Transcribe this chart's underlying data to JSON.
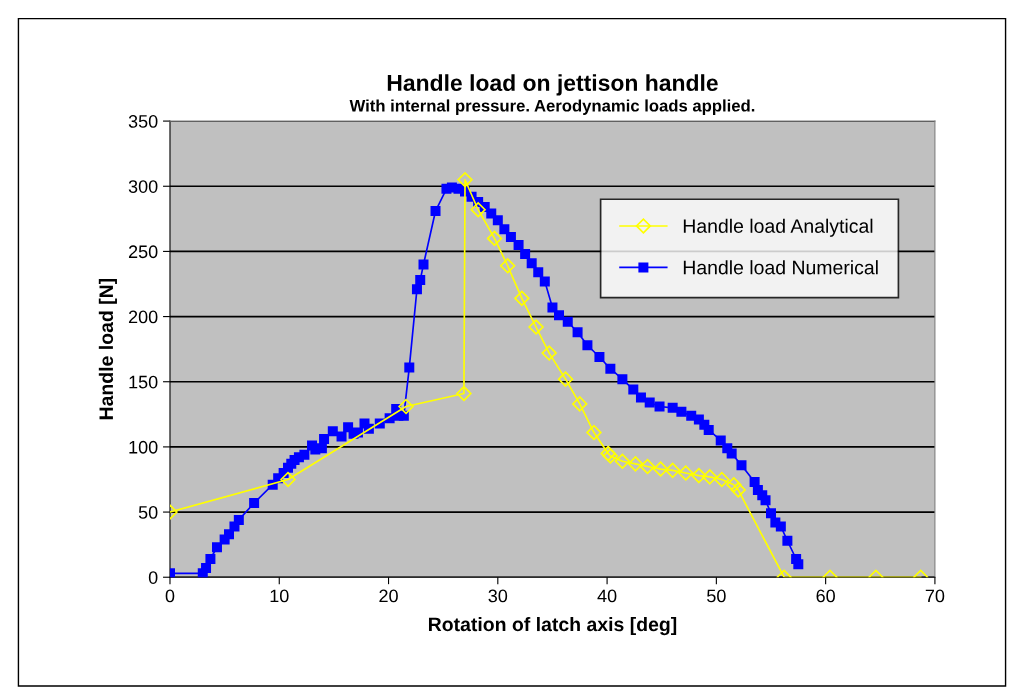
{
  "chart_data": {
    "type": "line",
    "title": "Handle load on jettison handle",
    "subtitle": "With internal pressure. Aerodynamic loads applied.",
    "xlabel": "Rotation of latch axis [deg]",
    "ylabel": "Handle load [N]",
    "xlim": [
      0,
      70
    ],
    "xticks": [
      0,
      10,
      20,
      30,
      40,
      50,
      60,
      70
    ],
    "ylim": [
      0,
      350
    ],
    "yticks": [
      0,
      50,
      100,
      150,
      200,
      250,
      300,
      350
    ],
    "grid": "y",
    "legend": "top right",
    "series": [
      {
        "name": "Handle load Analytical",
        "color": "#ffff00",
        "marker": "diamond",
        "x": [
          0,
          10.8,
          21.6,
          26.9,
          27.0,
          28.2,
          29.7,
          30.9,
          32.2,
          33.5,
          34.7,
          36.2,
          37.5,
          38.8,
          40.1,
          40.3,
          41.4,
          42.6,
          43.7,
          44.9,
          46.0,
          47.2,
          48.4,
          49.4,
          50.5,
          51.6,
          52.0,
          56.2,
          60.4,
          64.6,
          68.7
        ],
        "values": [
          50,
          75,
          131,
          141,
          305,
          282,
          260,
          239,
          214,
          192,
          172,
          152,
          133,
          111,
          95,
          93,
          89,
          87,
          85,
          83,
          82,
          80,
          78,
          77,
          75,
          71,
          67,
          0,
          0,
          0,
          0
        ]
      },
      {
        "name": "Handle load Numerical",
        "color": "#0000ff",
        "marker": "square",
        "x": [
          0,
          3.0,
          3.3,
          3.7,
          4.3,
          5.0,
          5.4,
          5.9,
          6.3,
          7.7,
          9.4,
          9.9,
          10.4,
          10.8,
          11.1,
          11.4,
          11.8,
          12.3,
          13.0,
          13.3,
          13.9,
          14.1,
          14.9,
          15.7,
          16.3,
          16.8,
          17.2,
          17.8,
          18.2,
          19.2,
          20.1,
          20.7,
          20.9,
          21.4,
          21.9,
          22.6,
          22.9,
          23.2,
          24.3,
          25.3,
          25.8,
          26.4,
          27.0,
          27.6,
          28.2,
          28.8,
          29.4,
          30.0,
          30.6,
          31.2,
          31.9,
          32.5,
          33.1,
          33.7,
          34.3,
          35.0,
          35.6,
          36.4,
          37.3,
          38.2,
          39.3,
          40.3,
          41.4,
          42.4,
          43.1,
          43.9,
          44.8,
          46.0,
          46.8,
          47.7,
          48.4,
          48.9,
          49.3,
          50.4,
          51.0,
          51.4,
          52.3,
          53.5,
          53.8,
          54.2,
          54.5,
          55.0,
          55.4,
          55.9,
          56.5,
          57.3,
          57.5
        ],
        "values": [
          3,
          3,
          7,
          14,
          23,
          29,
          33,
          39,
          44,
          57,
          71,
          76,
          80,
          84,
          87,
          90,
          92,
          94,
          101,
          98,
          99,
          106,
          112,
          108,
          115,
          110,
          111,
          118,
          114,
          118,
          122,
          129,
          124,
          124,
          161,
          221,
          228,
          240,
          281,
          298,
          299,
          298,
          296,
          292,
          288,
          284,
          279,
          274,
          267,
          261,
          255,
          248,
          241,
          234,
          227,
          207,
          201,
          196,
          188,
          178,
          169,
          160,
          152,
          144,
          138,
          134,
          131,
          130,
          127,
          124,
          121,
          117,
          113,
          105,
          99,
          95,
          86,
          73,
          67,
          63,
          59,
          49,
          42,
          39,
          28,
          14,
          10
        ]
      }
    ]
  }
}
